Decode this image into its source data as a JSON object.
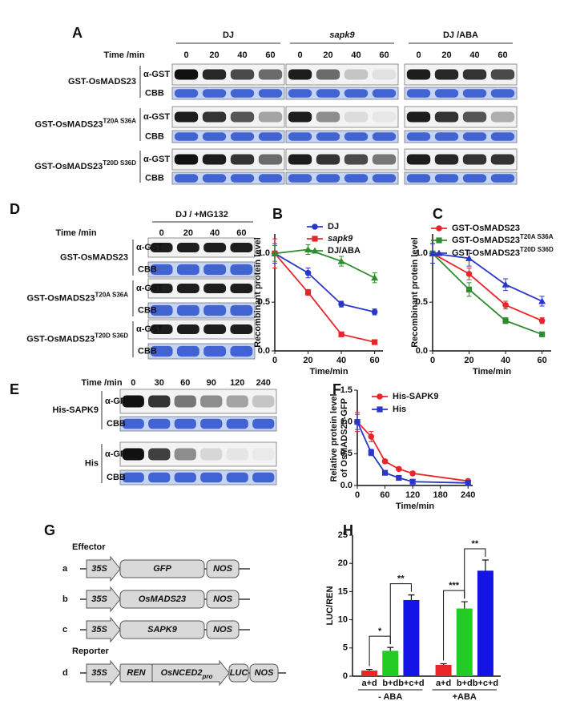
{
  "blot_a": {
    "panel": "A",
    "time_label": "Time /min",
    "groups": [
      "DJ",
      "sapk9",
      "DJ /ABA"
    ],
    "times": [
      "0",
      "20",
      "40",
      "60"
    ],
    "rows": [
      {
        "name": "GST-OsMADS23",
        "probe": "α-GST",
        "stain": "CBB"
      },
      {
        "name": "GST-OsMADS23",
        "sup": "T20A S36A",
        "probe": "α-GST",
        "stain": "CBB"
      },
      {
        "name": "GST-OsMADS23",
        "sup": "T20D S36D",
        "probe": "α-GST",
        "stain": "CBB"
      }
    ]
  },
  "blot_d": {
    "panel": "D",
    "condition": "DJ / +MG132",
    "time_label": "Time /min",
    "times": [
      "0",
      "20",
      "40",
      "60"
    ],
    "rows": [
      {
        "name": "GST-OsMADS23",
        "probe": "α-GST",
        "stain": "CBB"
      },
      {
        "name": "GST-OsMADS23",
        "sup": "T20A S36A",
        "probe": "α-GST",
        "stain": "CBB"
      },
      {
        "name": "GST-OsMADS23",
        "sup": "T20D S36D",
        "probe": "α-GST",
        "stain": "CBB"
      }
    ]
  },
  "blot_e": {
    "panel": "E",
    "time_label": "Time /min",
    "times": [
      "0",
      "30",
      "60",
      "90",
      "120",
      "240"
    ],
    "rows": [
      {
        "name": "His-SAPK9",
        "probe": "α-GFP",
        "stain": "CBB"
      },
      {
        "name": "His",
        "probe": "α-GFP",
        "stain": "CBB"
      }
    ]
  },
  "diagram_g": {
    "panel": "G",
    "effector_label": "Effector",
    "reporter_label": "Reporter",
    "constructs": [
      {
        "id": "a",
        "parts": [
          "35S",
          "GFP",
          "NOS"
        ]
      },
      {
        "id": "b",
        "parts": [
          "35S",
          "OsMADS23",
          "NOS"
        ]
      },
      {
        "id": "c",
        "parts": [
          "35S",
          "SAPK9",
          "NOS"
        ]
      },
      {
        "id": "d",
        "parts": [
          "35S",
          "REN",
          "OsNCED2",
          "LUC",
          "NOS"
        ],
        "promoter_sub": "pro"
      }
    ]
  },
  "chart_data": [
    {
      "type": "line",
      "panel": "B",
      "ylabel": "Recombinant protein level",
      "xlabel": "Time/min",
      "x": [
        0,
        20,
        40,
        60
      ],
      "xlim": [
        0,
        65
      ],
      "xticks": [
        0,
        20,
        40,
        60
      ],
      "ylim": [
        0,
        1.2
      ],
      "yticks": [
        {
          "value": 0,
          "label": "0.0"
        },
        {
          "value": 0.5,
          "label": "0.5"
        },
        {
          "value": 1,
          "label": "1.0"
        }
      ],
      "series": [
        {
          "name": "DJ",
          "color": "#2a36c8",
          "values": [
            1.0,
            0.8,
            0.48,
            0.4
          ],
          "errors": [
            0.1,
            0.05,
            0.03,
            0.03
          ]
        },
        {
          "name": "sapk9",
          "color": "#e8262a",
          "values": [
            1.0,
            0.6,
            0.17,
            0.09
          ],
          "errors": [
            0.15,
            0.03,
            0.02,
            0.02
          ]
        },
        {
          "name": "DJ/ABA",
          "color": "#2e8b2e",
          "values": [
            1.0,
            1.04,
            0.92,
            0.75
          ],
          "errors": [
            0.08,
            0.05,
            0.05,
            0.05
          ]
        }
      ]
    },
    {
      "type": "line",
      "panel": "C",
      "ylabel": "Recombinant protein level",
      "xlabel": "Time/min",
      "x": [
        0,
        20,
        40,
        60
      ],
      "xlim": [
        0,
        65
      ],
      "xticks": [
        0,
        20,
        40,
        60
      ],
      "ylim": [
        0,
        1.2
      ],
      "yticks": [
        {
          "value": 0,
          "label": "0.0"
        },
        {
          "value": 0.5,
          "label": "0.5"
        },
        {
          "value": 1,
          "label": "1.0"
        }
      ],
      "series": [
        {
          "name": "GST-OsMADS23",
          "color": "#e8262a",
          "values": [
            1.0,
            0.79,
            0.47,
            0.31
          ],
          "errors": [
            0.1,
            0.06,
            0.04,
            0.03
          ]
        },
        {
          "name": "GST-OsMADS23",
          "name_sup": "T20A S36A",
          "color": "#2e8b2e",
          "values": [
            1.0,
            0.63,
            0.31,
            0.17
          ],
          "errors": [
            0.1,
            0.07,
            0.03,
            0.02
          ]
        },
        {
          "name": "GST-OsMADS23",
          "name_sup": "T20D S36D",
          "color": "#2a36c8",
          "values": [
            1.0,
            0.95,
            0.68,
            0.51
          ],
          "errors": [
            0.1,
            0.08,
            0.06,
            0.05
          ]
        }
      ]
    },
    {
      "type": "line",
      "panel": "F",
      "ylabel": [
        "Relative  protein level",
        "of OsMADS23-GFP"
      ],
      "xlabel": "Time/min",
      "x": [
        0,
        30,
        60,
        90,
        120,
        240
      ],
      "xlim": [
        0,
        250
      ],
      "xticks": [
        0,
        60,
        120,
        180,
        240
      ],
      "ylim": [
        0,
        1.5
      ],
      "yticks": [
        {
          "value": 0,
          "label": "0.0"
        },
        {
          "value": 0.5,
          "label": "0.5"
        },
        {
          "value": 1,
          "label": "1.0"
        },
        {
          "value": 1.5,
          "label": "1.5"
        }
      ],
      "series": [
        {
          "name": "His-SAPK9",
          "color": "#e8262a",
          "values": [
            1.0,
            0.77,
            0.38,
            0.26,
            0.19,
            0.07
          ],
          "errors": [
            0.15,
            0.08,
            0.03,
            0.02,
            0.02,
            0.01
          ]
        },
        {
          "name": "His",
          "color": "#2a36c8",
          "values": [
            1.0,
            0.52,
            0.2,
            0.12,
            0.06,
            0.04
          ],
          "errors": [
            0.12,
            0.05,
            0.03,
            0.02,
            0.01,
            0.01
          ]
        }
      ]
    },
    {
      "type": "bar",
      "panel": "H",
      "ylabel": "LUC/REN",
      "categories": [
        "a+d",
        "b+d",
        "b+c+d",
        "a+d",
        "b+d",
        "b+c+d"
      ],
      "values": [
        1.0,
        4.5,
        13.5,
        2.0,
        12.0,
        18.7
      ],
      "errors": [
        0.2,
        0.6,
        0.9,
        0.2,
        1.2,
        1.9
      ],
      "colors": [
        "#e8262a",
        "#22cc22",
        "#1414e6",
        "#e8262a",
        "#22cc22",
        "#1414e6"
      ],
      "group_labels": [
        "- ABA",
        "+ABA"
      ],
      "significance": [
        "*",
        "**",
        "***",
        "**"
      ],
      "ylim": [
        0,
        25
      ],
      "yticks": [
        0,
        5,
        10,
        15,
        20,
        25
      ]
    }
  ]
}
